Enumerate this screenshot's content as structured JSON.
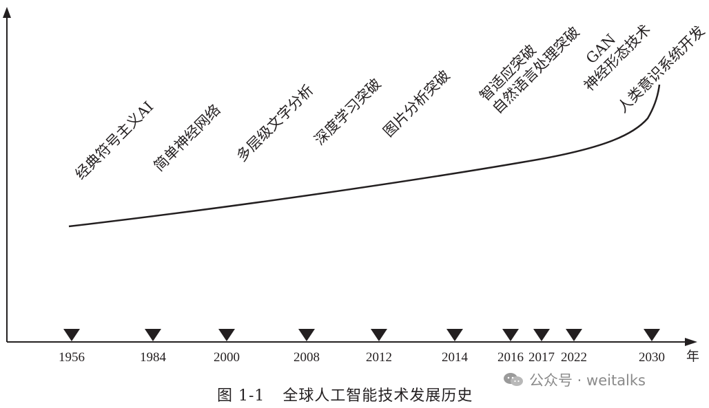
{
  "diagram": {
    "milestones": [
      {
        "year": "1956",
        "label": "经典符号主义AI"
      },
      {
        "year": "1984",
        "label": "简单神经网络"
      },
      {
        "year": "2000",
        "label": "多层级文字分析"
      },
      {
        "year": "2008",
        "label": "深度学习突破"
      },
      {
        "year": "2012",
        "label": "图片分析突破"
      },
      {
        "year": "2014",
        "label": "智适应突破\n自然语言处理突破"
      },
      {
        "year": "2016",
        "label": ""
      },
      {
        "year": "2017",
        "label": "GAN\n神经形态技术"
      },
      {
        "year": "2022",
        "label": ""
      },
      {
        "year": "2030",
        "label": "人类意识系统开发"
      }
    ],
    "axis_unit": "年"
  },
  "caption": {
    "number": "图 1-1",
    "title": "全球人工智能技术发展历史"
  },
  "watermark": {
    "text": "公众号 · weitalks"
  },
  "colors": {
    "ink": "#231f20",
    "watermark": "#8a8a8a"
  }
}
